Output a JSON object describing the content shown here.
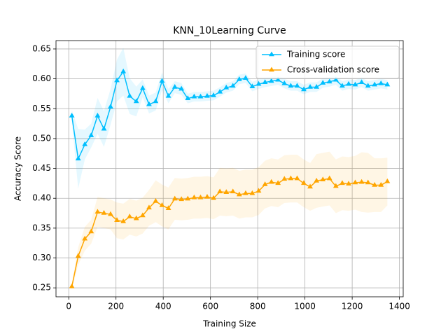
{
  "chart_data": {
    "type": "line",
    "title": "KNN_10Learning Curve",
    "x_label": "Training Size",
    "y_label": "Accuracy Score",
    "x": [
      13,
      40,
      68,
      95,
      122,
      149,
      177,
      204,
      231,
      258,
      286,
      313,
      340,
      368,
      395,
      422,
      449,
      477,
      504,
      531,
      558,
      586,
      613,
      640,
      667,
      695,
      722,
      749,
      777,
      804,
      831,
      858,
      886,
      913,
      940,
      967,
      995,
      1022,
      1049,
      1076,
      1104,
      1131,
      1158,
      1185,
      1213,
      1240,
      1267,
      1295,
      1322,
      1349
    ],
    "series": [
      {
        "name": "Training score",
        "color": "#00bfff",
        "values": [
          0.538,
          0.466,
          0.49,
          0.505,
          0.538,
          0.516,
          0.553,
          0.597,
          0.612,
          0.571,
          0.562,
          0.584,
          0.557,
          0.562,
          0.596,
          0.571,
          0.586,
          0.583,
          0.567,
          0.57,
          0.57,
          0.571,
          0.572,
          0.578,
          0.585,
          0.588,
          0.599,
          0.601,
          0.587,
          0.591,
          0.594,
          0.596,
          0.598,
          0.592,
          0.588,
          0.588,
          0.582,
          0.586,
          0.586,
          0.593,
          0.595,
          0.598,
          0.588,
          0.591,
          0.59,
          0.594,
          0.588,
          0.59,
          0.592,
          0.59
        ],
        "std": [
          0.01,
          0.05,
          0.025,
          0.02,
          0.03,
          0.03,
          0.03,
          0.035,
          0.04,
          0.03,
          0.025,
          0.015,
          0.015,
          0.015,
          0.015,
          0.012,
          0.01,
          0.01,
          0.008,
          0.008,
          0.008,
          0.008,
          0.008,
          0.008,
          0.008,
          0.008,
          0.008,
          0.008,
          0.008,
          0.008,
          0.008,
          0.008,
          0.008,
          0.008,
          0.008,
          0.008,
          0.008,
          0.008,
          0.008,
          0.008,
          0.008,
          0.008,
          0.008,
          0.008,
          0.008,
          0.008,
          0.008,
          0.008,
          0.008,
          0.008
        ]
      },
      {
        "name": "Cross-validation score",
        "color": "#ffa500",
        "values": [
          0.252,
          0.303,
          0.332,
          0.344,
          0.377,
          0.375,
          0.373,
          0.363,
          0.361,
          0.369,
          0.366,
          0.371,
          0.384,
          0.395,
          0.388,
          0.383,
          0.399,
          0.398,
          0.399,
          0.401,
          0.401,
          0.402,
          0.4,
          0.411,
          0.41,
          0.411,
          0.406,
          0.408,
          0.408,
          0.412,
          0.423,
          0.427,
          0.425,
          0.432,
          0.433,
          0.433,
          0.425,
          0.419,
          0.429,
          0.431,
          0.433,
          0.42,
          0.425,
          0.424,
          0.426,
          0.427,
          0.426,
          0.422,
          0.422,
          0.428
        ],
        "std": [
          0.005,
          0.015,
          0.02,
          0.02,
          0.025,
          0.025,
          0.025,
          0.03,
          0.03,
          0.03,
          0.03,
          0.03,
          0.03,
          0.035,
          0.035,
          0.035,
          0.035,
          0.035,
          0.035,
          0.035,
          0.035,
          0.035,
          0.035,
          0.04,
          0.04,
          0.04,
          0.04,
          0.04,
          0.04,
          0.04,
          0.04,
          0.04,
          0.04,
          0.04,
          0.04,
          0.04,
          0.04,
          0.04,
          0.045,
          0.045,
          0.045,
          0.045,
          0.045,
          0.045,
          0.045,
          0.05,
          0.05,
          0.045,
          0.045,
          0.04
        ]
      }
    ],
    "xlim": [
      -54,
      1416
    ],
    "xticks": [
      0,
      200,
      400,
      600,
      800,
      1000,
      1200,
      1400
    ],
    "ylim": [
      0.235,
      0.664
    ],
    "yticks": [
      0.25,
      {
        "value": 0.3,
        "label": "0.30"
      },
      0.35,
      {
        "value": 0.4,
        "label": "0.40"
      },
      0.45,
      {
        "value": 0.5,
        "label": "0.50"
      },
      0.55,
      {
        "value": 0.6,
        "label": "0.60"
      },
      0.65
    ],
    "grid": true,
    "legend": "upper right"
  }
}
